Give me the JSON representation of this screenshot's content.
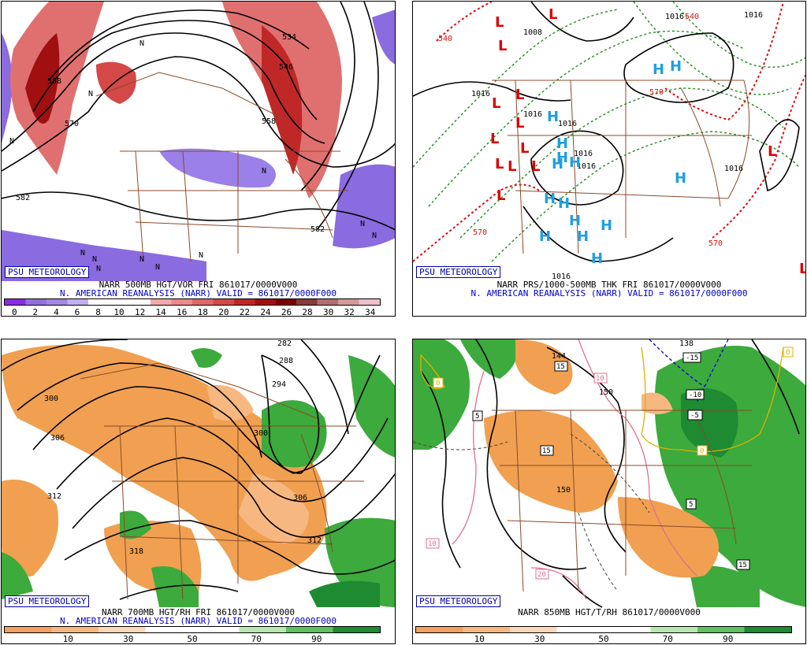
{
  "panels": [
    {
      "id": "p1",
      "badge": "PSU METEOROLOGY",
      "caption_line1": "NARR 500MB HGT/VOR FRI 861017/0000V000",
      "caption_line2": "N. AMERICAN REANALYSIS (NARR) VALID = 861017/0000F000",
      "contour_labels": [
        "582",
        "558",
        "570",
        "546",
        "558",
        "534",
        "582",
        "N",
        "N",
        "N",
        "N",
        "N",
        "N",
        "N",
        "N",
        "N",
        "N",
        "N",
        "N"
      ],
      "scale": {
        "colors": [
          "#8a2be2",
          "#9370db",
          "#a488e0",
          "#c0b0ee",
          "#ffffff",
          "#ffffff",
          "#ffffff",
          "#f3aaaa",
          "#ec8a8a",
          "#e06868",
          "#d44848",
          "#c02828",
          "#a01010",
          "#7a0000",
          "#8a3a3a",
          "#b07070",
          "#d49a9a",
          "#f0c0c8"
        ],
        "ticks": [
          "0",
          "2",
          "4",
          "6",
          "8",
          "10",
          "12",
          "14",
          "16",
          "18",
          "20",
          "22",
          "24",
          "26",
          "28",
          "30",
          "32",
          "34"
        ]
      }
    },
    {
      "id": "p2",
      "badge": "PSU METEOROLOGY",
      "caption_line1": "NARR PRS/1000-500MB THK FRI 861017/0000V000",
      "caption_line2": "N. AMERICAN REANALYSIS (NARR) VALID = 861017/0000F000",
      "pressure_labels": [
        "1008",
        "1016",
        "1016",
        "1016",
        "1016",
        "1016",
        "1016",
        "1016",
        "1016",
        "1016",
        "540",
        "540",
        "570",
        "570",
        "570"
      ],
      "systems_low": [
        "L",
        "L",
        "L",
        "L",
        "L",
        "L",
        "L",
        "L",
        "L",
        "L",
        "L",
        "L",
        "L",
        "L"
      ],
      "systems_high": [
        "H",
        "H",
        "H",
        "H",
        "H",
        "H",
        "H",
        "H",
        "H",
        "H",
        "H",
        "H",
        "H",
        "H",
        "H"
      ]
    },
    {
      "id": "p3",
      "badge": "PSU METEOROLOGY",
      "caption_line1": "NARR 700MB HGT/RH FRI 861017/0000V000",
      "caption_line2": "N. AMERICAN REANALYSIS (NARR) VALID = 861017/0000F000",
      "contour_labels": [
        "282",
        "288",
        "294",
        "300",
        "300",
        "306",
        "312",
        "312",
        "318",
        "306"
      ],
      "scale": {
        "colors": [
          "#f2a060",
          "#f6b880",
          "#fbd8b8",
          "#ffffff",
          "#ffffff",
          "#b8e8b0",
          "#60c060",
          "#1e8a32"
        ],
        "ticks": [
          "10",
          "30",
          "50",
          "70",
          "90"
        ]
      }
    },
    {
      "id": "p4",
      "badge": "PSU METEOROLOGY",
      "caption_line1": "NARR 850MB HGT/T/RH 861017/0000V000",
      "caption_line2": "",
      "contour_labels": [
        "138",
        "144",
        "150",
        "150"
      ],
      "temp_labels": [
        "-15",
        "-10",
        "-5",
        "0",
        "5",
        "5",
        "10",
        "10",
        "15",
        "15",
        "15",
        "20",
        "0",
        "0"
      ],
      "scale": {
        "colors": [
          "#f2a060",
          "#f6b880",
          "#fbd8b8",
          "#ffffff",
          "#ffffff",
          "#b8e8b0",
          "#60c060",
          "#1e8a32"
        ],
        "ticks": [
          "10",
          "30",
          "50",
          "70",
          "90"
        ]
      }
    }
  ],
  "colors": {
    "vort_purple": "#8a6be0",
    "vort_red": "#d44848",
    "rh_orange": "#f0a050",
    "rh_green": "#3caa3c",
    "map_border": "#8b4a2a",
    "low_red": "#dd0000",
    "high_blue": "#1ea0e0",
    "thk_green": "#228b22",
    "thk_red": "#dd1010"
  }
}
